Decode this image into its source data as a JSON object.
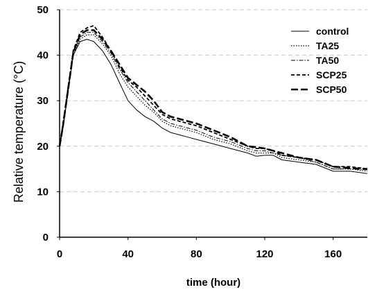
{
  "chart_data": {
    "type": "line",
    "title": "",
    "xlabel": "time (hour)",
    "ylabel": "Relative temperature (°C)",
    "xlim": [
      0,
      180
    ],
    "ylim": [
      0,
      50
    ],
    "x_ticks": [
      "0",
      "40",
      "80",
      "120",
      "160"
    ],
    "y_ticks": [
      "0",
      "10",
      "20",
      "30",
      "40",
      "50"
    ],
    "grid": "horizontal dashed",
    "legend_position": "top-right",
    "x": [
      0,
      2,
      5,
      8,
      12,
      16,
      20,
      25,
      30,
      35,
      40,
      45,
      50,
      55,
      60,
      65,
      70,
      75,
      80,
      90,
      100,
      110,
      115,
      120,
      125,
      130,
      140,
      150,
      160,
      170,
      180
    ],
    "series": [
      {
        "name": "control",
        "style": "solid",
        "values": [
          20,
          24,
          32,
          40,
          43,
          43.5,
          43,
          41,
          38,
          34,
          30,
          28,
          26.5,
          25.5,
          24,
          23,
          22.5,
          22,
          21.5,
          20.5,
          19.5,
          18.5,
          17.8,
          18,
          18,
          17,
          16.5,
          16,
          14.5,
          14.5,
          14
        ]
      },
      {
        "name": "TA25",
        "style": "dotted",
        "values": [
          20,
          24,
          32,
          40,
          43.5,
          44.5,
          44.5,
          42.5,
          40,
          36,
          33,
          31,
          29,
          27.5,
          25.5,
          24.5,
          24,
          23.5,
          23,
          21.5,
          20.5,
          19,
          18.5,
          18.5,
          18.5,
          17.5,
          17,
          16.5,
          15,
          15,
          14.5
        ]
      },
      {
        "name": "TA50",
        "style": "dash-dot",
        "values": [
          20,
          24.5,
          32.5,
          40.5,
          44,
          45,
          45,
          43,
          40.5,
          37,
          34,
          32,
          30,
          28,
          26,
          25,
          24.5,
          24,
          23.5,
          22,
          21,
          19.5,
          19,
          19,
          18.5,
          18,
          17.5,
          16.5,
          15,
          15,
          14.8
        ]
      },
      {
        "name": "SCP25",
        "style": "dashed",
        "values": [
          20,
          25,
          33,
          41,
          45,
          46,
          46.5,
          44,
          41,
          37.5,
          34.5,
          33,
          31,
          29,
          27,
          26,
          25.5,
          25,
          24.5,
          23,
          21.5,
          20,
          19.5,
          19.5,
          19,
          18,
          17.5,
          17,
          15.5,
          15.5,
          15
        ]
      },
      {
        "name": "SCP50",
        "style": "long-dash",
        "values": [
          20,
          24.5,
          32.5,
          40.5,
          44.5,
          45.5,
          45.5,
          43.5,
          41,
          38,
          35,
          33.5,
          32,
          30,
          27.5,
          26.5,
          26,
          25.5,
          25,
          23.5,
          22,
          20,
          19.8,
          19.5,
          19,
          18.5,
          17.5,
          17,
          15.5,
          15.2,
          15
        ]
      }
    ]
  }
}
